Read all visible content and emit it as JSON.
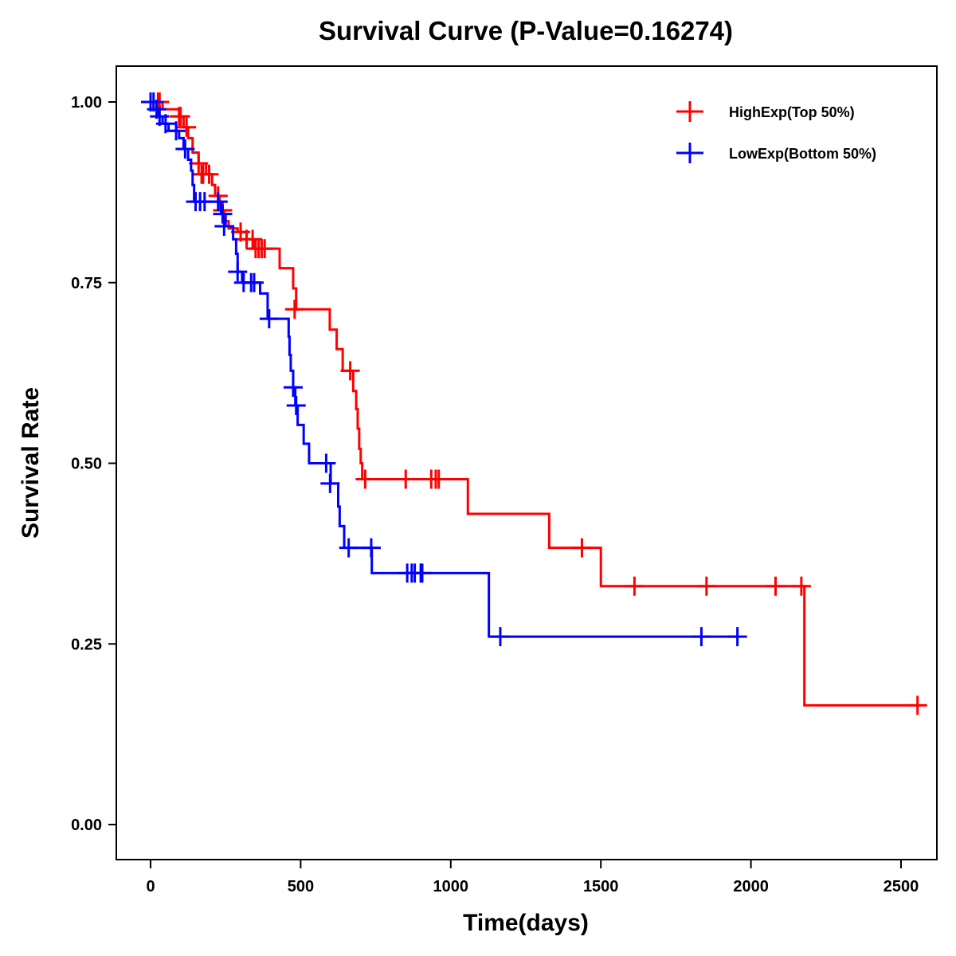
{
  "chart_data": {
    "type": "line",
    "subtype": "kaplan-meier-step",
    "title": "Survival Curve (P-Value=0.16274)",
    "xlabel": "Time(days)",
    "ylabel": "Survival Rate",
    "xlim": [
      -110,
      2620
    ],
    "ylim": [
      -0.048,
      1.048
    ],
    "x_ticks": [
      0,
      500,
      1000,
      1500,
      2000,
      2500
    ],
    "x_tick_labels": [
      "0",
      "500",
      "1000",
      "1500",
      "2000",
      "2500"
    ],
    "y_ticks": [
      0.0,
      0.25,
      0.5,
      0.75,
      1.0
    ],
    "y_tick_labels": [
      "0.00",
      "0.25",
      "0.50",
      "0.75",
      "1.00"
    ],
    "grid": false,
    "legend_position": "top-right",
    "series": [
      {
        "name": "HighExp(Top 50%)",
        "color": "#ff0000",
        "steps": [
          [
            0,
            1.0
          ],
          [
            40,
            0.99
          ],
          [
            95,
            0.98
          ],
          [
            110,
            0.965
          ],
          [
            125,
            0.95
          ],
          [
            140,
            0.93
          ],
          [
            160,
            0.915
          ],
          [
            185,
            0.9
          ],
          [
            205,
            0.885
          ],
          [
            215,
            0.87
          ],
          [
            230,
            0.85
          ],
          [
            245,
            0.835
          ],
          [
            260,
            0.825
          ],
          [
            290,
            0.82
          ],
          [
            320,
            0.81
          ],
          [
            345,
            0.797
          ],
          [
            430,
            0.77
          ],
          [
            475,
            0.742
          ],
          [
            485,
            0.713
          ],
          [
            565,
            0.713
          ],
          [
            597,
            0.685
          ],
          [
            620,
            0.658
          ],
          [
            640,
            0.628
          ],
          [
            675,
            0.6
          ],
          [
            685,
            0.575
          ],
          [
            690,
            0.548
          ],
          [
            695,
            0.52
          ],
          [
            700,
            0.5
          ],
          [
            705,
            0.478
          ],
          [
            1057,
            0.43
          ],
          [
            1328,
            0.383
          ],
          [
            1500,
            0.33
          ],
          [
            2178,
            0.165
          ],
          [
            2555,
            0.165
          ]
        ],
        "censored": [
          [
            25,
            1.0
          ],
          [
            30,
            1.0
          ],
          [
            95,
            0.98
          ],
          [
            100,
            0.98
          ],
          [
            120,
            0.965
          ],
          [
            160,
            0.915
          ],
          [
            170,
            0.9
          ],
          [
            175,
            0.9
          ],
          [
            195,
            0.9
          ],
          [
            225,
            0.87
          ],
          [
            240,
            0.85
          ],
          [
            300,
            0.82
          ],
          [
            320,
            0.81
          ],
          [
            340,
            0.81
          ],
          [
            350,
            0.797
          ],
          [
            360,
            0.797
          ],
          [
            370,
            0.797
          ],
          [
            380,
            0.797
          ],
          [
            480,
            0.713
          ],
          [
            665,
            0.628
          ],
          [
            715,
            0.478
          ],
          [
            850,
            0.478
          ],
          [
            935,
            0.478
          ],
          [
            950,
            0.478
          ],
          [
            960,
            0.478
          ],
          [
            1437,
            0.383
          ],
          [
            1612,
            0.33
          ],
          [
            1852,
            0.33
          ],
          [
            2082,
            0.33
          ],
          [
            2168,
            0.33
          ],
          [
            2555,
            0.165
          ]
        ]
      },
      {
        "name": "LowExp(Bottom 50%)",
        "color": "#0000ff",
        "steps": [
          [
            0,
            1.0
          ],
          [
            10,
            0.99
          ],
          [
            25,
            0.98
          ],
          [
            40,
            0.97
          ],
          [
            60,
            0.96
          ],
          [
            95,
            0.95
          ],
          [
            110,
            0.935
          ],
          [
            125,
            0.92
          ],
          [
            135,
            0.905
          ],
          [
            140,
            0.885
          ],
          [
            145,
            0.862
          ],
          [
            220,
            0.862
          ],
          [
            235,
            0.845
          ],
          [
            250,
            0.828
          ],
          [
            275,
            0.81
          ],
          [
            285,
            0.79
          ],
          [
            290,
            0.765
          ],
          [
            305,
            0.75
          ],
          [
            365,
            0.735
          ],
          [
            390,
            0.7
          ],
          [
            455,
            0.7
          ],
          [
            460,
            0.675
          ],
          [
            463,
            0.65
          ],
          [
            467,
            0.628
          ],
          [
            475,
            0.605
          ],
          [
            482,
            0.58
          ],
          [
            490,
            0.553
          ],
          [
            510,
            0.527
          ],
          [
            528,
            0.5
          ],
          [
            595,
            0.5
          ],
          [
            600,
            0.472
          ],
          [
            625,
            0.44
          ],
          [
            630,
            0.413
          ],
          [
            645,
            0.383
          ],
          [
            737,
            0.348
          ],
          [
            1127,
            0.26
          ],
          [
            1960,
            0.26
          ]
        ],
        "censored": [
          [
            0,
            1.0
          ],
          [
            10,
            1.0
          ],
          [
            20,
            0.99
          ],
          [
            30,
            0.98
          ],
          [
            50,
            0.97
          ],
          [
            85,
            0.96
          ],
          [
            115,
            0.935
          ],
          [
            150,
            0.862
          ],
          [
            165,
            0.862
          ],
          [
            180,
            0.862
          ],
          [
            225,
            0.862
          ],
          [
            240,
            0.845
          ],
          [
            245,
            0.828
          ],
          [
            290,
            0.765
          ],
          [
            310,
            0.75
          ],
          [
            335,
            0.75
          ],
          [
            345,
            0.75
          ],
          [
            395,
            0.7
          ],
          [
            475,
            0.605
          ],
          [
            485,
            0.58
          ],
          [
            585,
            0.5
          ],
          [
            598,
            0.472
          ],
          [
            660,
            0.383
          ],
          [
            735,
            0.383
          ],
          [
            855,
            0.348
          ],
          [
            870,
            0.348
          ],
          [
            880,
            0.348
          ],
          [
            900,
            0.348
          ],
          [
            905,
            0.348
          ],
          [
            1165,
            0.26
          ],
          [
            1835,
            0.26
          ],
          [
            1955,
            0.26
          ]
        ]
      }
    ]
  }
}
